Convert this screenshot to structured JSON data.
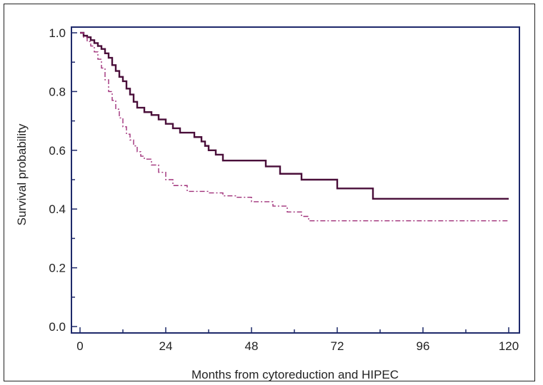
{
  "chart_data": {
    "type": "line",
    "title": "",
    "xlabel": "Months from cytoreduction and HIPEC",
    "ylabel": "Survival probability",
    "xlim": [
      0,
      120
    ],
    "ylim": [
      0,
      1.0
    ],
    "xticks": [
      "0",
      "24",
      "48",
      "72",
      "96",
      "120"
    ],
    "yticks": [
      "0.0",
      "0.2",
      "0.4",
      "0.6",
      "0.8",
      "1.0"
    ],
    "grid": false,
    "colors": {
      "axis": "#1f2a6b",
      "solid": "#4a0f3a",
      "dashed": "#a0307a"
    },
    "series": [
      {
        "style": "solid",
        "x": [
          0,
          1,
          2,
          3,
          4,
          5,
          6,
          7,
          8,
          9,
          10,
          11,
          12,
          13,
          14,
          15,
          16,
          18,
          20,
          22,
          24,
          26,
          28,
          32,
          34,
          35,
          36,
          38,
          40,
          48,
          52,
          56,
          62,
          72,
          82,
          120
        ],
        "y": [
          1.0,
          0.99,
          0.985,
          0.975,
          0.965,
          0.955,
          0.945,
          0.93,
          0.915,
          0.89,
          0.87,
          0.85,
          0.835,
          0.81,
          0.79,
          0.765,
          0.745,
          0.73,
          0.72,
          0.705,
          0.69,
          0.675,
          0.66,
          0.645,
          0.63,
          0.615,
          0.6,
          0.585,
          0.565,
          0.565,
          0.545,
          0.52,
          0.5,
          0.47,
          0.435,
          0.435
        ]
      },
      {
        "style": "dashed",
        "x": [
          0,
          1,
          2,
          3,
          4,
          5,
          6,
          7,
          8,
          9,
          10,
          11,
          12,
          13,
          14,
          15,
          16,
          17,
          18,
          20,
          22,
          24,
          26,
          30,
          36,
          40,
          44,
          48,
          54,
          58,
          62,
          64,
          120
        ],
        "y": [
          1.0,
          0.985,
          0.97,
          0.955,
          0.935,
          0.91,
          0.88,
          0.84,
          0.8,
          0.77,
          0.74,
          0.71,
          0.68,
          0.655,
          0.635,
          0.615,
          0.595,
          0.58,
          0.57,
          0.55,
          0.525,
          0.5,
          0.48,
          0.46,
          0.455,
          0.445,
          0.44,
          0.425,
          0.41,
          0.39,
          0.375,
          0.36,
          0.36
        ]
      }
    ]
  }
}
